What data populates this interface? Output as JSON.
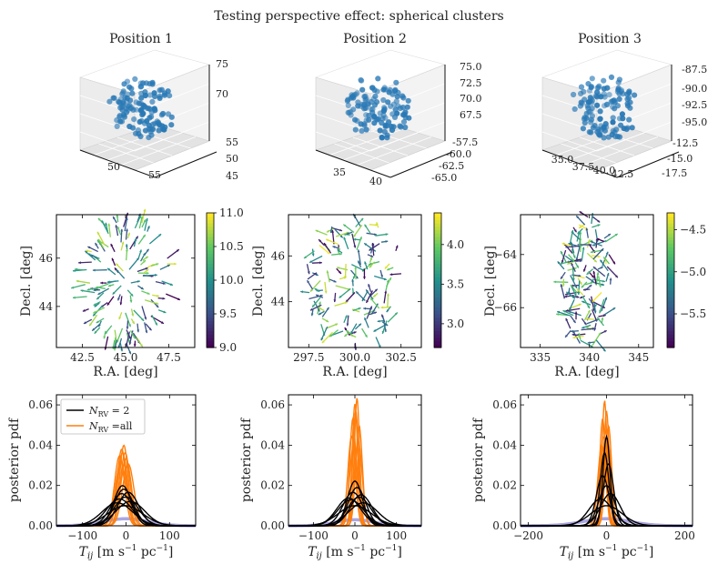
{
  "figure_title": "Testing perspective effect: spherical clusters",
  "chart_data": [
    {
      "type": "scatter",
      "subtype": "3d",
      "title": "Position 1",
      "z_ticks": [
        "75",
        "70"
      ],
      "x_ticks": [
        "50",
        "55"
      ],
      "y_ticks": [
        "55",
        "50",
        "45"
      ],
      "point_color": "#2878b5",
      "n_points": 120
    },
    {
      "type": "scatter",
      "subtype": "3d",
      "title": "Position 2",
      "z_ticks": [
        "75.0",
        "72.5",
        "70.0",
        "67.5"
      ],
      "x_ticks": [
        "35",
        "40"
      ],
      "y_ticks": [
        "-57.5",
        "-60.0",
        "-62.5",
        "-65.0"
      ],
      "point_color": "#2878b5",
      "n_points": 120
    },
    {
      "type": "scatter",
      "subtype": "3d",
      "title": "Position 3",
      "z_ticks": [
        "-87.5",
        "-90.0",
        "-92.5",
        "-95.0"
      ],
      "x_ticks": [
        "35.0",
        "37.5",
        "40.0",
        "42.5"
      ],
      "y_ticks": [
        "-12.5",
        "-15.0",
        "-17.5"
      ],
      "point_color": "#2878b5",
      "n_points": 120
    },
    {
      "type": "quiver",
      "xlabel": "R.A. [deg]",
      "ylabel": "Decl. [deg]",
      "xlim": [
        41,
        49
      ],
      "ylim": [
        42.3,
        47.8
      ],
      "xticks": [
        42.5,
        45.0,
        47.5
      ],
      "xtick_labels": [
        "42.5",
        "45.0",
        "47.5"
      ],
      "yticks": [
        44,
        46
      ],
      "ytick_labels": [
        "44",
        "46"
      ],
      "colorbar": {
        "cmap": "viridis",
        "range": [
          9.0,
          11.0
        ],
        "ticks": [
          9.0,
          9.5,
          10.0,
          10.5,
          11.0
        ],
        "tick_labels": [
          "9.0",
          "9.5",
          "10.0",
          "10.5",
          "11.0"
        ]
      },
      "center": [
        45,
        45
      ],
      "radius": 2.6,
      "pattern": "radial",
      "n_arrows": 140
    },
    {
      "type": "quiver",
      "xlabel": "R.A. [deg]",
      "ylabel": "Decl. [deg]",
      "xlim": [
        296.4,
        303.6
      ],
      "ylim": [
        42.0,
        47.8
      ],
      "xticks": [
        297.5,
        300.0,
        302.5
      ],
      "xtick_labels": [
        "297.5",
        "300.0",
        "302.5"
      ],
      "yticks": [
        44,
        46
      ],
      "ytick_labels": [
        "44",
        "46"
      ],
      "colorbar": {
        "cmap": "viridis",
        "range": [
          2.7,
          4.4
        ],
        "ticks": [
          3.0,
          3.5,
          4.0
        ],
        "tick_labels": [
          "3.0",
          "3.5",
          "4.0"
        ]
      },
      "center": [
        300,
        45
      ],
      "radius": 2.7,
      "pattern": "random",
      "n_arrows": 140
    },
    {
      "type": "quiver",
      "xlabel": "R.A. [deg]",
      "ylabel": "Decl. [deg]",
      "xlim": [
        333,
        346.5
      ],
      "ylim": [
        -67.5,
        -62.5
      ],
      "xticks": [
        335,
        340,
        345
      ],
      "xtick_labels": [
        "335",
        "340",
        "345"
      ],
      "yticks": [
        -66,
        -64
      ],
      "ytick_labels": [
        "−66",
        "−64"
      ],
      "colorbar": {
        "cmap": "viridis",
        "range": [
          -5.9,
          -4.3
        ],
        "ticks": [
          -5.5,
          -5.0,
          -4.5
        ],
        "tick_labels": [
          "−5.5",
          "−5.0",
          "−4.5"
        ]
      },
      "center": [
        339.5,
        -65
      ],
      "radius": 2.5,
      "pattern": "random",
      "n_arrows": 140
    },
    {
      "type": "line",
      "xlabel": "T_ij [m s^-1 pc^-1]",
      "ylabel": "posterior pdf",
      "xlim": [
        -160,
        160
      ],
      "ylim": [
        0,
        0.065
      ],
      "xticks": [
        -100,
        0,
        100
      ],
      "xtick_labels": [
        "−100",
        "0",
        "100"
      ],
      "yticks": [
        0,
        0.02,
        0.04,
        0.06
      ],
      "ytick_labels": [
        "0.00",
        "0.02",
        "0.04",
        "0.06"
      ],
      "legend": {
        "placement": "upper-left",
        "entries": [
          {
            "label": "N_RV = 2",
            "color": "#000000"
          },
          {
            "label": "N_RV =all",
            "color": "#ff7f0e"
          }
        ]
      },
      "series": [
        {
          "name": "N_RV = 2",
          "color": "#000000",
          "curves": [
            {
              "mu": -5,
              "sigma": 22
            },
            {
              "mu": -10,
              "sigma": 25
            },
            {
              "mu": 0,
              "sigma": 28
            },
            {
              "mu": -15,
              "sigma": 30
            },
            {
              "mu": 5,
              "sigma": 24
            },
            {
              "mu": -20,
              "sigma": 35
            },
            {
              "mu": 10,
              "sigma": 33
            },
            {
              "mu": -2,
              "sigma": 40
            },
            {
              "mu": -8,
              "sigma": 20
            }
          ]
        },
        {
          "name": "N_RV =all",
          "color": "#ff7f0e",
          "curves": [
            {
              "mu": -5,
              "sigma": 10
            },
            {
              "mu": -10,
              "sigma": 10.5
            },
            {
              "mu": -2,
              "sigma": 11
            },
            {
              "mu": -15,
              "sigma": 11.5
            },
            {
              "mu": 0,
              "sigma": 12
            },
            {
              "mu": -8,
              "sigma": 11
            },
            {
              "mu": -12,
              "sigma": 12.5
            },
            {
              "mu": 5,
              "sigma": 13
            }
          ]
        },
        {
          "name": "prior",
          "color": "#8f88d8",
          "curves": [
            {
              "mu": 0,
              "sigma": 50,
              "scale": 0.0035
            }
          ]
        }
      ]
    },
    {
      "type": "line",
      "xlabel": "T_ij [m s^-1 pc^-1]",
      "ylabel": "posterior pdf",
      "xlim": [
        -160,
        160
      ],
      "ylim": [
        0,
        0.065
      ],
      "xticks": [
        -100,
        0,
        100
      ],
      "xtick_labels": [
        "−100",
        "0",
        "100"
      ],
      "yticks": [
        0,
        0.02,
        0.04,
        0.06
      ],
      "ytick_labels": [
        "0.00",
        "0.02",
        "0.04",
        "0.06"
      ],
      "series": [
        {
          "name": "N_RV = 2",
          "color": "#000000",
          "curves": [
            {
              "mu": 0,
              "sigma": 18
            },
            {
              "mu": 5,
              "sigma": 21
            },
            {
              "mu": -5,
              "sigma": 24
            },
            {
              "mu": 10,
              "sigma": 28
            },
            {
              "mu": -10,
              "sigma": 31
            },
            {
              "mu": 20,
              "sigma": 35
            },
            {
              "mu": 0,
              "sigma": 40
            },
            {
              "mu": 15,
              "sigma": 26
            },
            {
              "mu": -15,
              "sigma": 29
            }
          ]
        },
        {
          "name": "N_RV =all",
          "color": "#ff7f0e",
          "curves": [
            {
              "mu": 5,
              "sigma": 6.3
            },
            {
              "mu": 0,
              "sigma": 6.6
            },
            {
              "mu": -5,
              "sigma": 7.5
            },
            {
              "mu": 10,
              "sigma": 8
            },
            {
              "mu": 2,
              "sigma": 7
            },
            {
              "mu": -8,
              "sigma": 9
            },
            {
              "mu": 8,
              "sigma": 9.5
            },
            {
              "mu": -3,
              "sigma": 10
            }
          ]
        },
        {
          "name": "prior",
          "color": "#8f88d8",
          "curves": [
            {
              "mu": 0,
              "sigma": 45,
              "scale": 0.003
            }
          ]
        }
      ]
    },
    {
      "type": "line",
      "xlabel": "T_ij [m s^-1 pc^-1]",
      "ylabel": "posterior pdf",
      "xlim": [
        -220,
        220
      ],
      "ylim": [
        0,
        0.065
      ],
      "xticks": [
        -200,
        0,
        200
      ],
      "xtick_labels": [
        "−200",
        "0",
        "200"
      ],
      "yticks": [
        0,
        0.02,
        0.04,
        0.06
      ],
      "ytick_labels": [
        "0.00",
        "0.02",
        "0.04",
        "0.06"
      ],
      "series": [
        {
          "name": "N_RV = 2",
          "color": "#000000",
          "curves": [
            {
              "mu": 0,
              "sigma": 9
            },
            {
              "mu": -5,
              "sigma": 11
            },
            {
              "mu": 5,
              "sigma": 13
            },
            {
              "mu": -10,
              "sigma": 16
            },
            {
              "mu": 0,
              "sigma": 20
            },
            {
              "mu": 10,
              "sigma": 25
            },
            {
              "mu": -15,
              "sigma": 30
            },
            {
              "mu": 0,
              "sigma": 40
            }
          ]
        },
        {
          "name": "N_RV =all",
          "color": "#ff7f0e",
          "curves": [
            {
              "mu": -5,
              "sigma": 6.4
            },
            {
              "mu": 0,
              "sigma": 7
            },
            {
              "mu": -10,
              "sigma": 7.5
            },
            {
              "mu": 5,
              "sigma": 8
            },
            {
              "mu": -2,
              "sigma": 8.5
            },
            {
              "mu": -8,
              "sigma": 9
            },
            {
              "mu": 3,
              "sigma": 9.5
            },
            {
              "mu": -12,
              "sigma": 10
            }
          ]
        },
        {
          "name": "prior",
          "color": "#8f88d8",
          "curves": [
            {
              "mu": 0,
              "sigma": 60,
              "scale": 0.0035
            }
          ]
        }
      ]
    }
  ]
}
